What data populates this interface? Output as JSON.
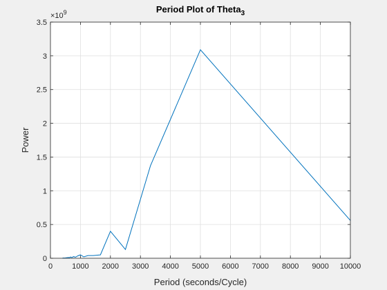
{
  "chart_data": {
    "type": "line",
    "title": "Period Plot of Theta",
    "title_subscript": "3",
    "xlabel": "Period (seconds/Cycle)",
    "ylabel": "Power",
    "y_exponent_label": "×10",
    "y_exponent_power": "9",
    "xlim": [
      0,
      10000
    ],
    "ylim": [
      0,
      3.5
    ],
    "xticks": [
      0,
      1000,
      2000,
      3000,
      4000,
      5000,
      6000,
      7000,
      8000,
      9000,
      10000
    ],
    "yticks": [
      0,
      0.5,
      1,
      1.5,
      2,
      2.5,
      3,
      3.5
    ],
    "xtick_labels": [
      "0",
      "1000",
      "2000",
      "3000",
      "4000",
      "5000",
      "6000",
      "7000",
      "8000",
      "9000",
      "10000"
    ],
    "ytick_labels": [
      "0",
      "0.5",
      "1",
      "1.5",
      "2",
      "2.5",
      "3",
      "3.5"
    ],
    "grid": true,
    "series_color": "#0072bd",
    "series": [
      {
        "name": "",
        "x": [
          400,
          455,
          500,
          526,
          555,
          588,
          625,
          667,
          714,
          769,
          833,
          909,
          1000,
          1111,
          1250,
          1429,
          1667,
          2000,
          2500,
          3333,
          5000,
          10000
        ],
        "y": [
          0.002,
          0.004,
          0.003,
          0.008,
          0.005,
          0.012,
          0.006,
          0.018,
          0.01,
          0.025,
          0.015,
          0.035,
          0.05,
          0.02,
          0.04,
          0.04,
          0.05,
          0.4,
          0.13,
          1.37,
          3.09,
          0.56
        ]
      }
    ]
  }
}
